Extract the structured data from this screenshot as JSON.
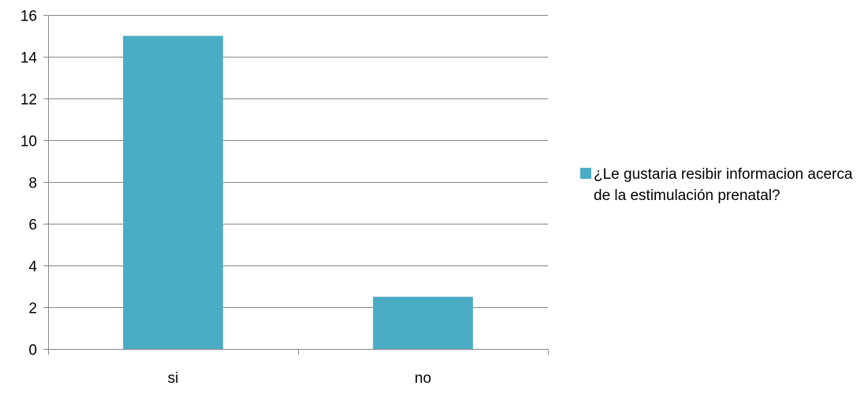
{
  "chart_data": {
    "type": "bar",
    "categories": [
      "si",
      "no"
    ],
    "series": [
      {
        "name": "¿Le gustaria resibir informacion acerca de la estimulación prenatal?",
        "values": [
          15,
          2.5
        ],
        "color": "#4BACC6"
      }
    ],
    "ylim": [
      0,
      16
    ],
    "yticks": [
      "0",
      "2",
      "4",
      "6",
      "8",
      "10",
      "12",
      "14",
      "16"
    ],
    "grid": true,
    "legend_position": "right",
    "title": "",
    "xlabel": "",
    "ylabel": ""
  }
}
